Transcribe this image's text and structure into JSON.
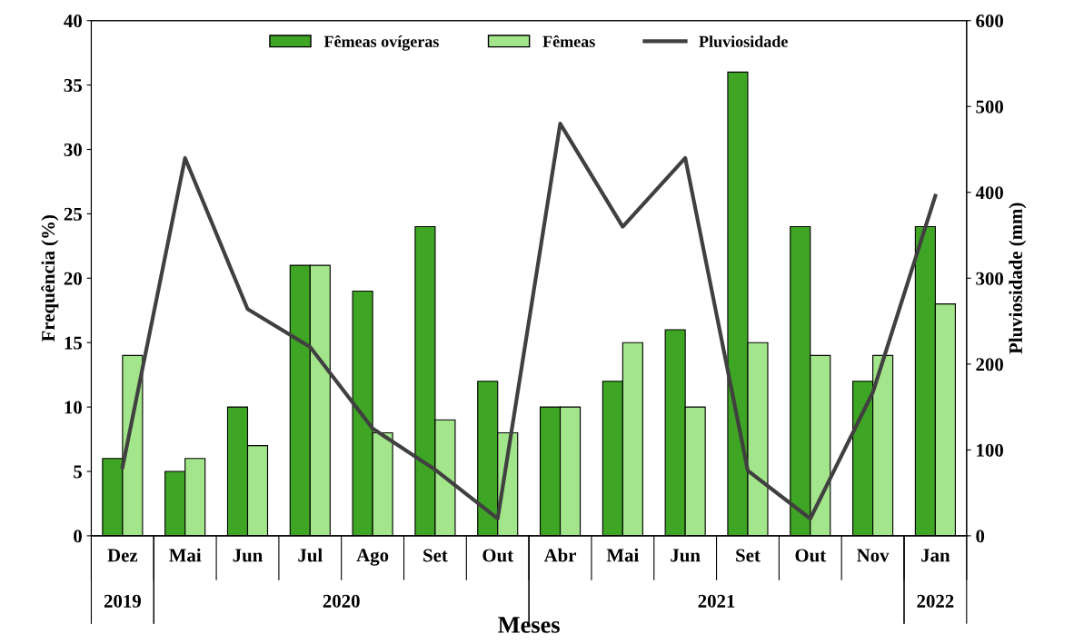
{
  "chart_data": {
    "type": "bar",
    "xlabel": "Meses",
    "ylabel": "Frequência (%)",
    "y2label": "Pluviosidade (mm)",
    "categories": [
      "Dez",
      "Mai",
      "Jun",
      "Jul",
      "Ago",
      "Set",
      "Out",
      "Abr",
      "Mai",
      "Jun",
      "Set",
      "Out",
      "Nov",
      "Jan"
    ],
    "series": [
      {
        "name": "Fêmeas ovígeras",
        "color": "#3fa524",
        "values": [
          6,
          5,
          10,
          21,
          19,
          24,
          12,
          10,
          12,
          16,
          36,
          24,
          12,
          24
        ]
      },
      {
        "name": "Fêmeas",
        "color": "#a3e58a",
        "values": [
          14,
          6,
          7,
          21,
          8,
          9,
          8,
          10,
          15,
          10,
          15,
          14,
          14,
          18
        ]
      },
      {
        "name": "Pluviosidade",
        "type": "line",
        "axis": "y2",
        "color": "#404040",
        "values": [
          80,
          440,
          264,
          220,
          125,
          77,
          20,
          480,
          360,
          440,
          76,
          20,
          167,
          396
        ]
      }
    ],
    "ylim": [
      0,
      40
    ],
    "yticks": [
      0,
      5,
      10,
      15,
      20,
      25,
      30,
      35,
      40
    ],
    "y2lim": [
      0,
      600
    ],
    "y2ticks": [
      0,
      100,
      200,
      300,
      400,
      500,
      600
    ],
    "annotations": [
      "2019",
      "2020",
      "2021",
      "2022"
    ],
    "legend": "top",
    "grid": false
  }
}
